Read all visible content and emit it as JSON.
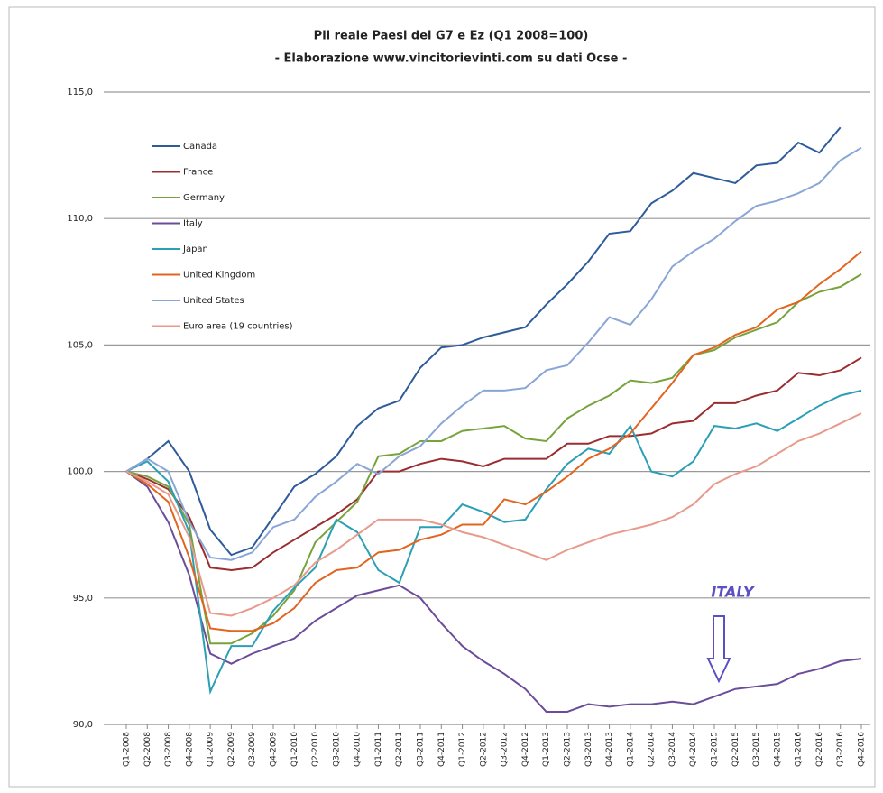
{
  "chart_data": {
    "type": "line",
    "title": "Pil reale Paesi del G7 e Ez (Q1 2008=100)",
    "subtitle": "- Elaborazione www.vincitorievinti.com su dati Ocse -",
    "annotation": "ITALY",
    "legend": "upper left",
    "grid": true,
    "categories": [
      "Q1-2008",
      "Q2-2008",
      "Q3-2008",
      "Q4-2008",
      "Q1-2009",
      "Q2-2009",
      "Q3-2009",
      "Q4-2009",
      "Q1-2010",
      "Q2-2010",
      "Q3-2010",
      "Q4-2010",
      "Q1-2011",
      "Q2-2011",
      "Q3-2011",
      "Q4-2011",
      "Q1-2012",
      "Q2-2012",
      "Q3-2012",
      "Q4-2012",
      "Q1-2013",
      "Q2-2013",
      "Q3-2013",
      "Q4-2013",
      "Q1-2014",
      "Q2-2014",
      "Q3-2014",
      "Q4-2014",
      "Q1-2015",
      "Q2-2015",
      "Q3-2015",
      "Q4-2015",
      "Q1-2016",
      "Q2-2016",
      "Q3-2016",
      "Q4-2016"
    ],
    "ylim": [
      90,
      115
    ],
    "yticks": [
      {
        "value": 90,
        "label": "90,0"
      },
      {
        "value": 95,
        "label": "95,0"
      },
      {
        "value": 100,
        "label": "100,0"
      },
      {
        "value": 105,
        "label": "105,0"
      },
      {
        "value": 110,
        "label": "110,0"
      },
      {
        "value": 115,
        "label": "115,0"
      }
    ],
    "series": [
      {
        "name": "Canada",
        "color": "#2e5b9a",
        "values": [
          100,
          100.5,
          101.2,
          100.0,
          97.7,
          96.7,
          97.0,
          98.2,
          99.4,
          99.9,
          100.6,
          101.8,
          102.5,
          102.8,
          104.1,
          104.9,
          105.0,
          105.3,
          105.5,
          105.7,
          106.6,
          107.4,
          108.3,
          109.4,
          109.5,
          110.6,
          111.1,
          111.8,
          111.6,
          111.4,
          112.1,
          112.2,
          113.0,
          112.6,
          113.6,
          null
        ]
      },
      {
        "name": "France",
        "color": "#9b2d30",
        "values": [
          100,
          99.7,
          99.3,
          98.2,
          96.2,
          96.1,
          96.2,
          96.8,
          97.3,
          97.8,
          98.3,
          98.9,
          100.0,
          100.0,
          100.3,
          100.5,
          100.4,
          100.2,
          100.5,
          100.5,
          100.5,
          101.1,
          101.1,
          101.4,
          101.4,
          101.5,
          101.9,
          102.0,
          102.7,
          102.7,
          103.0,
          103.2,
          103.9,
          103.8,
          104.0,
          104.5
        ]
      },
      {
        "name": "Germany",
        "color": "#77a33c",
        "values": [
          100,
          99.8,
          99.4,
          97.9,
          93.2,
          93.2,
          93.6,
          94.3,
          95.3,
          97.2,
          98.0,
          98.8,
          100.6,
          100.7,
          101.2,
          101.2,
          101.6,
          101.7,
          101.8,
          101.3,
          101.2,
          102.1,
          102.6,
          103.0,
          103.6,
          103.5,
          103.7,
          104.6,
          104.8,
          105.3,
          105.6,
          105.9,
          106.7,
          107.1,
          107.3,
          107.8
        ]
      },
      {
        "name": "Italy",
        "color": "#6b4c9a",
        "values": [
          100,
          99.4,
          98.0,
          95.9,
          92.8,
          92.4,
          92.8,
          93.1,
          93.4,
          94.1,
          94.6,
          95.1,
          95.3,
          95.5,
          95.0,
          94.0,
          93.1,
          92.5,
          92.0,
          91.4,
          90.5,
          90.5,
          90.8,
          90.7,
          90.8,
          90.8,
          90.9,
          90.8,
          91.1,
          91.4,
          91.5,
          91.6,
          92.0,
          92.2,
          92.5,
          92.6
        ]
      },
      {
        "name": "Japan",
        "color": "#2b9fb5",
        "values": [
          100,
          100.4,
          99.6,
          97.6,
          91.3,
          93.1,
          93.1,
          94.5,
          95.4,
          96.2,
          98.1,
          97.6,
          96.1,
          95.6,
          97.8,
          97.8,
          98.7,
          98.4,
          98.0,
          98.1,
          99.3,
          100.3,
          100.9,
          100.7,
          101.8,
          100.0,
          99.8,
          100.4,
          101.8,
          101.7,
          101.9,
          101.6,
          102.1,
          102.6,
          103.0,
          103.2
        ]
      },
      {
        "name": "United Kingdom",
        "color": "#e2641f",
        "values": [
          100,
          99.5,
          98.8,
          96.6,
          93.8,
          93.7,
          93.7,
          94.0,
          94.6,
          95.6,
          96.1,
          96.2,
          96.8,
          96.9,
          97.3,
          97.5,
          97.9,
          97.9,
          98.9,
          98.7,
          99.2,
          99.8,
          100.5,
          100.9,
          101.5,
          102.5,
          103.5,
          104.6,
          104.9,
          105.4,
          105.7,
          106.4,
          106.7,
          107.4,
          108.0,
          108.7
        ]
      },
      {
        "name": "United States",
        "color": "#8aa6d6",
        "values": [
          100,
          100.5,
          100.0,
          98.0,
          96.6,
          96.5,
          96.8,
          97.8,
          98.1,
          99.0,
          99.6,
          100.3,
          99.9,
          100.6,
          101.0,
          101.9,
          102.6,
          103.2,
          103.2,
          103.3,
          104.0,
          104.2,
          105.1,
          106.1,
          105.8,
          106.8,
          108.1,
          108.7,
          109.2,
          109.9,
          110.5,
          110.7,
          111.0,
          111.4,
          112.3,
          112.8
        ]
      },
      {
        "name": "Euro area (19 countries)",
        "color": "#e89a8c",
        "values": [
          100,
          99.6,
          99.1,
          97.4,
          94.4,
          94.3,
          94.6,
          95.0,
          95.5,
          96.4,
          96.9,
          97.5,
          98.1,
          98.1,
          98.1,
          97.9,
          97.6,
          97.4,
          97.1,
          96.8,
          96.5,
          96.9,
          97.2,
          97.5,
          97.7,
          97.9,
          98.2,
          98.7,
          99.5,
          99.9,
          100.2,
          100.7,
          101.2,
          101.5,
          101.9,
          102.3
        ]
      }
    ]
  }
}
